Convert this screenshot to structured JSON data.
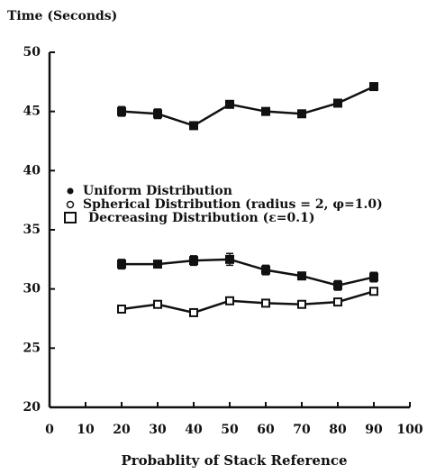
{
  "chart_data": {
    "type": "line",
    "ylabel": "Time (Seconds)",
    "xlabel": "Probablity of Stack Reference",
    "x": [
      20,
      30,
      40,
      50,
      60,
      70,
      80,
      90
    ],
    "series": [
      {
        "name": "Uniform Distribution",
        "color": "#111111",
        "marker": "filled",
        "values": [
          45.0,
          44.8,
          43.8,
          45.6,
          45.0,
          44.8,
          45.7,
          47.1
        ],
        "errors": [
          0.4,
          0.4,
          0.1,
          0.3,
          0.1,
          0.1,
          0.1,
          0.1
        ]
      },
      {
        "name": "Spherical Distribution (radius = 2, φ=1.0)",
        "color": "#111111",
        "marker": "filled",
        "values": [
          32.1,
          32.1,
          32.4,
          32.5,
          31.6,
          31.1,
          30.3,
          31.0
        ],
        "errors": [
          0.4,
          0.2,
          0.4,
          0.5,
          0.4,
          0.1,
          0.4,
          0.4
        ]
      },
      {
        "name": "Decreasing Distribution (ε=0.1)",
        "color": "#111111",
        "marker": "open",
        "values": [
          28.3,
          28.7,
          28.0,
          29.0,
          28.8,
          28.7,
          28.9,
          29.8
        ],
        "errors": [
          0.1,
          0.1,
          0.1,
          0.1,
          0.1,
          0.1,
          0.1,
          0.3
        ]
      }
    ],
    "xlim": [
      0,
      100
    ],
    "xticks": [
      0,
      10,
      20,
      30,
      40,
      50,
      60,
      70,
      80,
      90,
      100
    ],
    "ylim": [
      20,
      50
    ],
    "yticks": [
      20,
      25,
      30,
      35,
      40,
      45,
      50
    ]
  }
}
